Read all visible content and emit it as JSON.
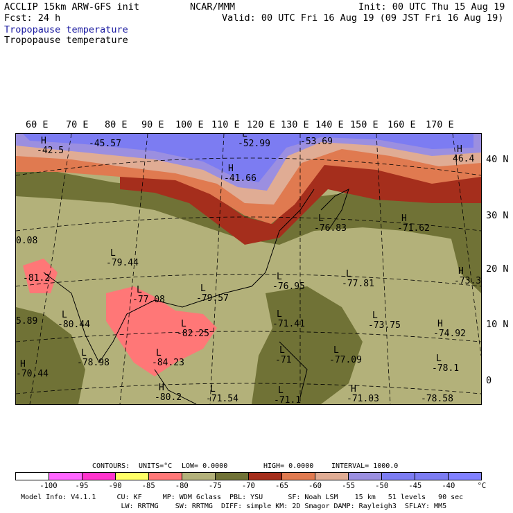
{
  "header": {
    "left_line1": "ACCLIP 15km ARW-GFS init",
    "center_line1": "NCAR/MMM",
    "right_line1": "Init: 00 UTC Thu 15 Aug 19",
    "left_line2": "Fcst:   24 h",
    "right_line2": "Valid: 00 UTC Fri 16 Aug 19 (09 JST Fri 16 Aug 19)",
    "field_title_blue": "Tropopause temperature",
    "field_title_black": "Tropopause temperature"
  },
  "longitude_labels": [
    "60 E",
    "70 E",
    "80 E",
    "90 E",
    "100 E",
    "110 E",
    "120 E",
    "130 E",
    "140 E",
    "150 E",
    "160 E",
    "170 E"
  ],
  "latitude_labels": [
    "40 N",
    "30 N",
    "20 N",
    "10 N",
    "0"
  ],
  "map_annotations": [
    {
      "mark": "H",
      "value": "-42.5"
    },
    {
      "mark": "",
      "value": "-45.57"
    },
    {
      "mark": "L",
      "value": "-52.99"
    },
    {
      "mark": "",
      "value": "-53.69"
    },
    {
      "mark": "H",
      "value": "-41.66"
    },
    {
      "mark": "H",
      "value": "46.4"
    },
    {
      "mark": "",
      "value": "0.08"
    },
    {
      "mark": "L",
      "value": "-79.44"
    },
    {
      "mark": "L",
      "value": "-76.83"
    },
    {
      "mark": "H",
      "value": "-71.62"
    },
    {
      "mark": "",
      "value": "-81.2"
    },
    {
      "mark": "L",
      "value": "-77.08"
    },
    {
      "mark": "L",
      "value": "-79.57"
    },
    {
      "mark": "L",
      "value": "-76.95"
    },
    {
      "mark": "L",
      "value": "-77.81"
    },
    {
      "mark": "H",
      "value": "-73.3"
    },
    {
      "mark": "",
      "value": "5.89"
    },
    {
      "mark": "L",
      "value": "-80.44"
    },
    {
      "mark": "L",
      "value": "-82.25"
    },
    {
      "mark": "L",
      "value": "-71.41"
    },
    {
      "mark": "L",
      "value": "-73.75"
    },
    {
      "mark": "H",
      "value": "-74.92"
    },
    {
      "mark": "L",
      "value": "-78.98"
    },
    {
      "mark": "L",
      "value": "-84.23"
    },
    {
      "mark": "L",
      "value": "-71"
    },
    {
      "mark": "L",
      "value": "-77.09"
    },
    {
      "mark": "L",
      "value": "-78.1"
    },
    {
      "mark": "H",
      "value": "-70.44"
    },
    {
      "mark": "H",
      "value": "-80.2"
    },
    {
      "mark": "L",
      "value": "-71.54"
    },
    {
      "mark": "L",
      "value": "-71.1"
    },
    {
      "mark": "H",
      "value": "-71.03"
    },
    {
      "mark": "",
      "value": "-78.58"
    }
  ],
  "contour_info": {
    "contours": "CONTOURS:",
    "units": "UNITS=°C",
    "low": "LOW=  0.0000",
    "high": "HIGH=  0.0000",
    "interval": "INTERVAL=   1000.0"
  },
  "legend": {
    "colors": [
      "#ffffff",
      "#ff66ff",
      "#ff33cc",
      "#ffff66",
      "#ff7777",
      "#b3b17a",
      "#707236",
      "#a52e1c",
      "#e07a50",
      "#e0ac94",
      "#9b8fe0",
      "#7c7cf2",
      "#7c7cf2",
      "#8080ff"
    ],
    "labels": [
      "-100",
      "-95",
      "-90",
      "-85",
      "-80",
      "-75",
      "-70",
      "-65",
      "-60",
      "-55",
      "-50",
      "-45",
      "-40",
      "°C"
    ]
  },
  "model_info": {
    "line1": "Model Info: V4.1.1     CU: KF     MP: WDM 6class  PBL: YSU      SF: Noah LSM    15 km   51 levels   90 sec",
    "line2": "                        LW: RRTMG    SW: RRTMG  DIFF: simple KM: 2D Smagor DAMP: Rayleigh3  SFLAY: MM5"
  }
}
